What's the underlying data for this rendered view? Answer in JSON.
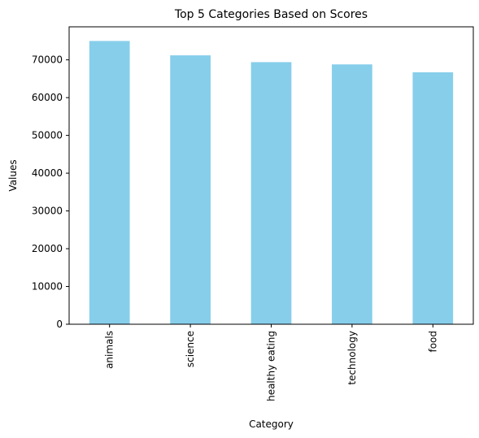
{
  "chart_data": {
    "type": "bar",
    "title": "Top 5 Categories Based on Scores",
    "xlabel": "Category",
    "ylabel": "Values",
    "categories": [
      "animals",
      "science",
      "healthy eating",
      "technology",
      "food"
    ],
    "values": [
      75000,
      71200,
      69400,
      68800,
      66700
    ],
    "ylim": [
      0,
      78750
    ],
    "yticks": [
      0,
      10000,
      20000,
      30000,
      40000,
      50000,
      60000,
      70000
    ],
    "ytick_labels": [
      "0",
      "10000",
      "20000",
      "30000",
      "40000",
      "50000",
      "60000",
      "70000"
    ],
    "bar_color": "#87ceeb",
    "grid": false,
    "legend": "none"
  }
}
